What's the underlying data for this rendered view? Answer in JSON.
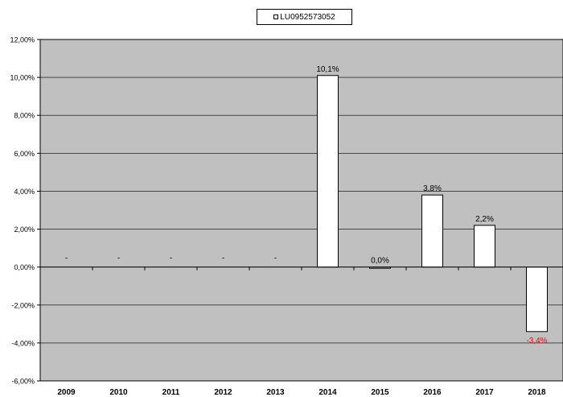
{
  "chart_data": {
    "type": "bar",
    "categories": [
      "2009",
      "2010",
      "2011",
      "2012",
      "2013",
      "2014",
      "2015",
      "2016",
      "2017",
      "2018"
    ],
    "series": [
      {
        "name": "LU0952573052",
        "values": [
          null,
          null,
          null,
          null,
          null,
          10.1,
          0.0,
          3.8,
          2.2,
          -3.4
        ],
        "labels": [
          "-",
          "-",
          "-",
          "-",
          "-",
          "10,1%",
          "0,0%",
          "3,8%",
          "2,2%",
          "-3,4%"
        ]
      }
    ],
    "y_ticks": [
      "12,00%",
      "10,00%",
      "8,00%",
      "6,00%",
      "4,00%",
      "2,00%",
      "0,00%",
      "-2,00%",
      "-4,00%",
      "-6,00%"
    ],
    "ylim": [
      -6,
      12
    ],
    "grid": true,
    "legend_position": "top-center",
    "colors": {
      "plot_bg": "#c0c0c0",
      "bar_fill": "#ffffff",
      "negative_label": "#ff0000"
    }
  }
}
